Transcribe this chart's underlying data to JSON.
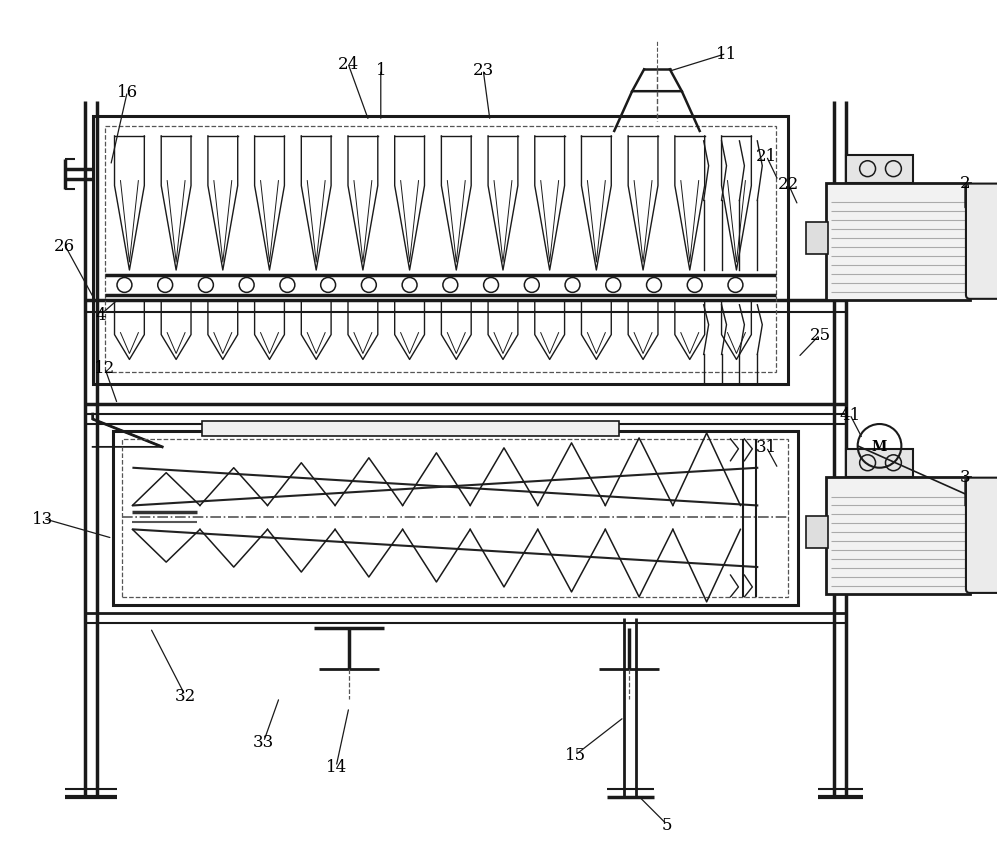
{
  "bg": "#ffffff",
  "lc": "#1a1a1a",
  "lc_gray": "#888888",
  "lc_dash": "#555555",
  "fig_w": 10.0,
  "fig_h": 8.54,
  "labels": [
    [
      "1",
      380,
      68
    ],
    [
      "2",
      965,
      185
    ],
    [
      "3",
      965,
      490
    ],
    [
      "4",
      100,
      318
    ],
    [
      "5",
      665,
      828
    ],
    [
      "11",
      725,
      52
    ],
    [
      "12",
      105,
      370
    ],
    [
      "13",
      42,
      520
    ],
    [
      "14",
      338,
      770
    ],
    [
      "15",
      578,
      755
    ],
    [
      "16",
      128,
      95
    ],
    [
      "21",
      770,
      158
    ],
    [
      "22",
      790,
      185
    ],
    [
      "23",
      483,
      72
    ],
    [
      "24",
      348,
      65
    ],
    [
      "25",
      822,
      340
    ],
    [
      "26",
      65,
      248
    ],
    [
      "31",
      768,
      450
    ],
    [
      "32",
      185,
      700
    ],
    [
      "33",
      265,
      745
    ],
    [
      "41",
      855,
      418
    ]
  ]
}
